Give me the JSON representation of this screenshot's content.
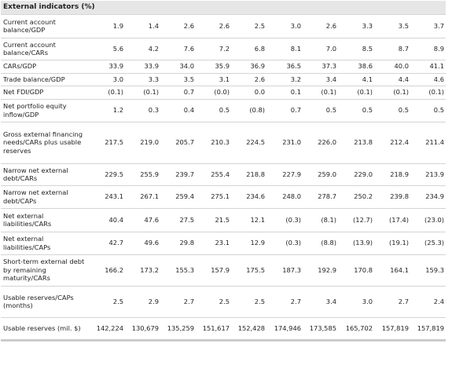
{
  "title": "External indicators (%)",
  "rows": [
    {
      "label": "Current account balance/GDP",
      "values": [
        "1.9",
        "1.4",
        "2.6",
        "2.6",
        "2.5",
        "3.0",
        "2.6",
        "3.3",
        "3.5",
        "3.7"
      ]
    },
    {
      "label": "Current account balance/CARs",
      "values": [
        "5.6",
        "4.2",
        "7.6",
        "7.2",
        "6.8",
        "8.1",
        "7.0",
        "8.5",
        "8.7",
        "8.9"
      ]
    },
    {
      "label": "CARs/GDP",
      "values": [
        "33.9",
        "33.9",
        "34.0",
        "35.9",
        "36.9",
        "36.5",
        "37.3",
        "38.6",
        "40.0",
        "41.1"
      ]
    },
    {
      "label": "Trade balance/GDP",
      "values": [
        "3.0",
        "3.3",
        "3.5",
        "3.1",
        "2.6",
        "3.2",
        "3.4",
        "4.1",
        "4.4",
        "4.6"
      ]
    },
    {
      "label": "Net FDI/GDP",
      "values": [
        "(0.1)",
        "(0.1)",
        "0.7",
        "(0.0)",
        "0.0",
        "0.1",
        "(0.1)",
        "(0.1)",
        "(0.1)",
        "(0.1)"
      ]
    },
    {
      "label": "Net portfolio equity inflow/GDP",
      "values": [
        "1.2",
        "0.3",
        "0.4",
        "0.5",
        "(0.8)",
        "0.7",
        "0.5",
        "0.5",
        "0.5",
        "0.5"
      ]
    },
    {
      "label": "Gross external financing needs/CARs plus usable reserves",
      "values": [
        "217.5",
        "219.0",
        "205.7",
        "210.3",
        "224.5",
        "231.0",
        "226.0",
        "213.8",
        "212.4",
        "211.4"
      ]
    },
    {
      "label": "Narrow net external debt/CARs",
      "values": [
        "229.5",
        "255.9",
        "239.7",
        "255.4",
        "218.8",
        "227.9",
        "259.0",
        "229.0",
        "218.9",
        "213.9"
      ]
    },
    {
      "label": "Narrow net external debt/CAPs",
      "values": [
        "243.1",
        "267.1",
        "259.4",
        "275.1",
        "234.6",
        "248.0",
        "278.7",
        "250.2",
        "239.8",
        "234.9"
      ]
    },
    {
      "label": "Net external liabilities/CARs",
      "values": [
        "40.4",
        "47.6",
        "27.5",
        "21.5",
        "12.1",
        "(0.3)",
        "(8.1)",
        "(12.7)",
        "(17.4)",
        "(23.0)"
      ]
    },
    {
      "label": "Net external liabilities/CAPs",
      "values": [
        "42.7",
        "49.6",
        "29.8",
        "23.1",
        "12.9",
        "(0.3)",
        "(8.8)",
        "(13.9)",
        "(19.1)",
        "(25.3)"
      ]
    },
    {
      "label": "Short-term external debt by remaining maturity/CARs",
      "values": [
        "166.2",
        "173.2",
        "155.3",
        "157.9",
        "175.5",
        "187.3",
        "192.9",
        "170.8",
        "164.1",
        "159.3"
      ]
    },
    {
      "label": "Usable reserves/CAPs (months)",
      "values": [
        "2.5",
        "2.9",
        "2.7",
        "2.5",
        "2.5",
        "2.7",
        "3.4",
        "3.0",
        "2.7",
        "2.4"
      ]
    },
    {
      "label": "Usable reserves (mil. $)",
      "values": [
        "142,224",
        "130,679",
        "135,259",
        "151,617",
        "152,428",
        "174,946",
        "173,585",
        "165,702",
        "157,819",
        "157,819"
      ]
    }
  ]
}
